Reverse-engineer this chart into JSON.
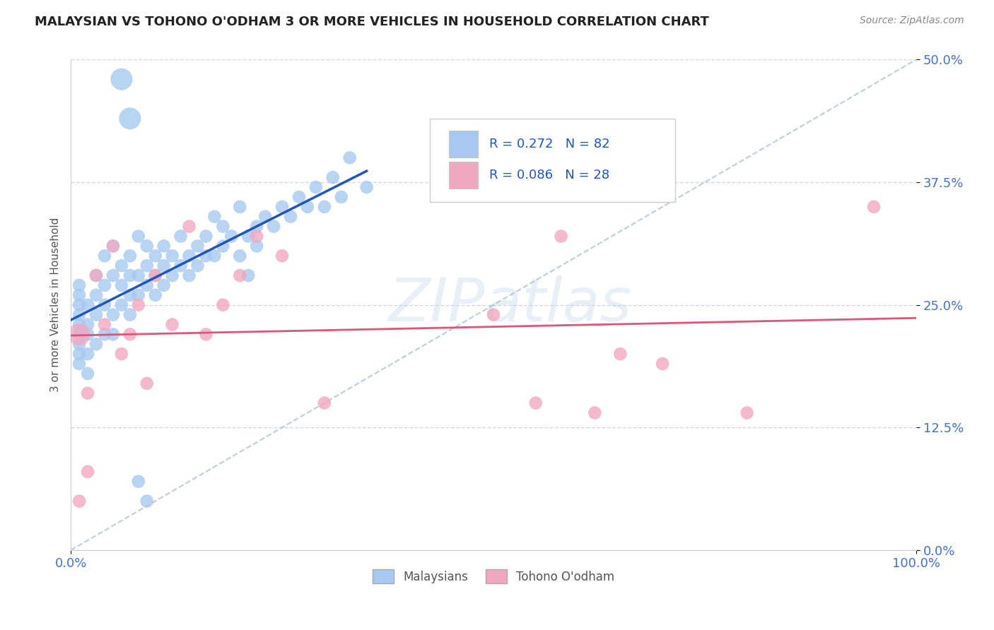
{
  "title": "MALAYSIAN VS TOHONO O'ODHAM 3 OR MORE VEHICLES IN HOUSEHOLD CORRELATION CHART",
  "source": "Source: ZipAtlas.com",
  "ylabel": "3 or more Vehicles in Household",
  "watermark": "ZIPatlas",
  "legend_label1": "Malaysians",
  "legend_label2": "Tohono O'odham",
  "R1": 0.272,
  "N1": 82,
  "R2": 0.086,
  "N2": 28,
  "color1": "#a8c8f0",
  "color2": "#f0a8c0",
  "line_color1": "#2255bb",
  "line_color2": "#dd5577",
  "dashed_line_color": "#a0b8d0",
  "background_color": "#ffffff",
  "grid_color": "#d0d8e8",
  "xmin": 0.0,
  "xmax": 1.0,
  "ymin": 0.0,
  "ymax": 0.5,
  "yticks": [
    0.0,
    0.125,
    0.25,
    0.375,
    0.5
  ],
  "ytick_labels": [
    "0.0%",
    "12.5%",
    "25.0%",
    "37.5%",
    "50.0%"
  ],
  "xtick_labels": [
    "0.0%",
    "100.0%"
  ],
  "xticks": [
    0.0,
    1.0
  ],
  "malaysian_x": [
    0.01,
    0.01,
    0.01,
    0.01,
    0.01,
    0.01,
    0.01,
    0.01,
    0.01,
    0.02,
    0.02,
    0.02,
    0.02,
    0.02,
    0.03,
    0.03,
    0.03,
    0.03,
    0.04,
    0.04,
    0.04,
    0.04,
    0.05,
    0.05,
    0.05,
    0.05,
    0.06,
    0.06,
    0.06,
    0.07,
    0.07,
    0.07,
    0.07,
    0.08,
    0.08,
    0.08,
    0.09,
    0.09,
    0.09,
    0.1,
    0.1,
    0.1,
    0.11,
    0.11,
    0.11,
    0.12,
    0.12,
    0.13,
    0.13,
    0.14,
    0.14,
    0.15,
    0.15,
    0.16,
    0.16,
    0.17,
    0.17,
    0.18,
    0.18,
    0.19,
    0.2,
    0.2,
    0.21,
    0.21,
    0.22,
    0.22,
    0.23,
    0.24,
    0.25,
    0.26,
    0.27,
    0.28,
    0.29,
    0.3,
    0.31,
    0.32,
    0.33,
    0.35,
    0.06,
    0.07,
    0.08,
    0.09
  ],
  "malaysian_y": [
    0.22,
    0.24,
    0.25,
    0.26,
    0.2,
    0.23,
    0.21,
    0.19,
    0.27,
    0.22,
    0.25,
    0.23,
    0.2,
    0.18,
    0.26,
    0.28,
    0.24,
    0.21,
    0.25,
    0.3,
    0.22,
    0.27,
    0.28,
    0.24,
    0.22,
    0.31,
    0.27,
    0.29,
    0.25,
    0.28,
    0.26,
    0.3,
    0.24,
    0.26,
    0.28,
    0.32,
    0.27,
    0.29,
    0.31,
    0.28,
    0.26,
    0.3,
    0.29,
    0.27,
    0.31,
    0.28,
    0.3,
    0.29,
    0.32,
    0.3,
    0.28,
    0.31,
    0.29,
    0.32,
    0.3,
    0.3,
    0.34,
    0.31,
    0.33,
    0.32,
    0.3,
    0.35,
    0.32,
    0.28,
    0.33,
    0.31,
    0.34,
    0.33,
    0.35,
    0.34,
    0.36,
    0.35,
    0.37,
    0.35,
    0.38,
    0.36,
    0.4,
    0.37,
    0.48,
    0.44,
    0.07,
    0.05
  ],
  "tohono_x": [
    0.01,
    0.01,
    0.02,
    0.02,
    0.03,
    0.04,
    0.05,
    0.06,
    0.07,
    0.08,
    0.09,
    0.1,
    0.12,
    0.14,
    0.16,
    0.18,
    0.2,
    0.22,
    0.25,
    0.3,
    0.5,
    0.55,
    0.58,
    0.62,
    0.65,
    0.7,
    0.8,
    0.95
  ],
  "tohono_y": [
    0.22,
    0.05,
    0.08,
    0.16,
    0.28,
    0.23,
    0.31,
    0.2,
    0.22,
    0.25,
    0.17,
    0.28,
    0.23,
    0.33,
    0.22,
    0.25,
    0.28,
    0.32,
    0.3,
    0.15,
    0.24,
    0.15,
    0.32,
    0.14,
    0.2,
    0.19,
    0.14,
    0.35
  ],
  "malaysian_sizes": [
    180,
    180,
    180,
    180,
    180,
    180,
    180,
    180,
    180,
    180,
    180,
    180,
    180,
    180,
    180,
    180,
    180,
    180,
    180,
    180,
    180,
    180,
    180,
    180,
    180,
    180,
    180,
    180,
    180,
    180,
    180,
    180,
    180,
    180,
    180,
    180,
    180,
    180,
    180,
    180,
    180,
    180,
    180,
    180,
    180,
    180,
    180,
    180,
    180,
    180,
    180,
    180,
    180,
    180,
    180,
    180,
    180,
    180,
    180,
    180,
    180,
    180,
    180,
    180,
    180,
    180,
    180,
    180,
    180,
    180,
    180,
    180,
    180,
    180,
    180,
    180,
    180,
    180,
    500,
    500,
    180,
    180
  ],
  "tohono_sizes": [
    500,
    180,
    180,
    180,
    180,
    180,
    180,
    180,
    180,
    180,
    180,
    180,
    180,
    180,
    180,
    180,
    180,
    180,
    180,
    180,
    180,
    180,
    180,
    180,
    180,
    180,
    180,
    180
  ]
}
